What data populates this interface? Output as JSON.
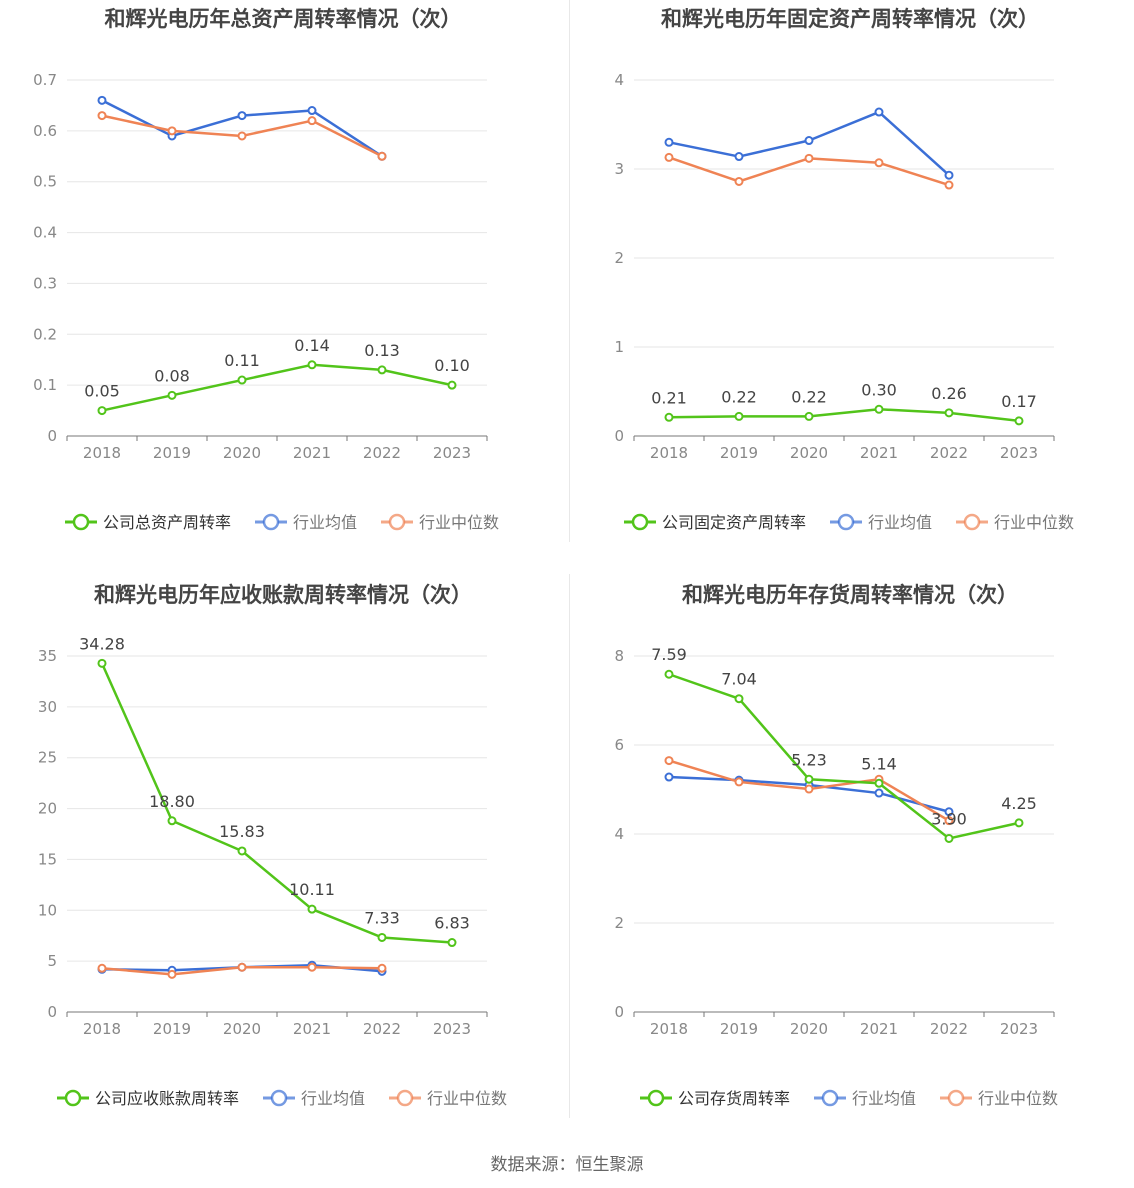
{
  "source": "数据来源：恒生聚源",
  "chart_data": [
    {
      "type": "line",
      "title": "和辉光电历年总资产周转率情况（次）",
      "x": [
        "2018",
        "2019",
        "2020",
        "2021",
        "2022",
        "2023"
      ],
      "ylim": [
        0,
        0.7
      ],
      "yticks": [
        "0",
        "0.1",
        "0.2",
        "0.3",
        "0.4",
        "0.5",
        "0.6",
        "0.7"
      ],
      "grid": true,
      "legend_position": "bottom",
      "series": [
        {
          "name": "公司总资产周转率",
          "color": "#52c41a",
          "values": [
            0.05,
            0.08,
            0.11,
            0.14,
            0.13,
            0.1
          ],
          "labels": [
            "0.05",
            "0.08",
            "0.11",
            "0.14",
            "0.13",
            "0.10"
          ]
        },
        {
          "name": "行业均值",
          "color": "#3b6fd6",
          "values": [
            0.66,
            0.59,
            0.63,
            0.64,
            0.55,
            null
          ]
        },
        {
          "name": "行业中位数",
          "color": "#ef8354",
          "values": [
            0.63,
            0.6,
            0.59,
            0.62,
            0.55,
            null
          ]
        }
      ]
    },
    {
      "type": "line",
      "title": "和辉光电历年固定资产周转率情况（次）",
      "x": [
        "2018",
        "2019",
        "2020",
        "2021",
        "2022",
        "2023"
      ],
      "ylim": [
        0,
        4
      ],
      "yticks": [
        "0",
        "1",
        "2",
        "3",
        "4"
      ],
      "grid": true,
      "legend_position": "bottom",
      "series": [
        {
          "name": "公司固定资产周转率",
          "color": "#52c41a",
          "values": [
            0.21,
            0.22,
            0.22,
            0.3,
            0.26,
            0.17
          ],
          "labels": [
            "0.21",
            "0.22",
            "0.22",
            "0.30",
            "0.26",
            "0.17"
          ]
        },
        {
          "name": "行业均值",
          "color": "#3b6fd6",
          "values": [
            3.3,
            3.14,
            3.32,
            3.64,
            2.93,
            null
          ]
        },
        {
          "name": "行业中位数",
          "color": "#ef8354",
          "values": [
            3.13,
            2.86,
            3.12,
            3.07,
            2.82,
            null
          ]
        }
      ]
    },
    {
      "type": "line",
      "title": "和辉光电历年应收账款周转率情况（次）",
      "x": [
        "2018",
        "2019",
        "2020",
        "2021",
        "2022",
        "2023"
      ],
      "ylim": [
        0,
        35
      ],
      "yticks": [
        "0",
        "5",
        "10",
        "15",
        "20",
        "25",
        "30",
        "35"
      ],
      "grid": true,
      "legend_position": "bottom",
      "series": [
        {
          "name": "公司应收账款周转率",
          "color": "#52c41a",
          "values": [
            34.28,
            18.8,
            15.83,
            10.11,
            7.33,
            6.83
          ],
          "labels": [
            "34.28",
            "18.80",
            "15.83",
            "10.11",
            "7.33",
            "6.83"
          ]
        },
        {
          "name": "行业均值",
          "color": "#3b6fd6",
          "values": [
            4.2,
            4.1,
            4.4,
            4.6,
            4.0,
            null
          ]
        },
        {
          "name": "行业中位数",
          "color": "#ef8354",
          "values": [
            4.3,
            3.7,
            4.4,
            4.4,
            4.3,
            null
          ]
        }
      ]
    },
    {
      "type": "line",
      "title": "和辉光电历年存货周转率情况（次）",
      "x": [
        "2018",
        "2019",
        "2020",
        "2021",
        "2022",
        "2023"
      ],
      "ylim": [
        0,
        8
      ],
      "yticks": [
        "0",
        "2",
        "4",
        "6",
        "8"
      ],
      "grid": true,
      "legend_position": "bottom",
      "series": [
        {
          "name": "公司存货周转率",
          "color": "#52c41a",
          "values": [
            7.59,
            7.04,
            5.23,
            5.14,
            3.9,
            4.25
          ],
          "labels": [
            "7.59",
            "7.04",
            "5.23",
            "5.14",
            "3.90",
            "4.25"
          ]
        },
        {
          "name": "行业均值",
          "color": "#3b6fd6",
          "values": [
            5.28,
            5.21,
            5.1,
            4.92,
            4.5,
            null
          ]
        },
        {
          "name": "行业中位数",
          "color": "#ef8354",
          "values": [
            5.65,
            5.17,
            5.01,
            5.23,
            4.3,
            null
          ]
        }
      ]
    }
  ]
}
